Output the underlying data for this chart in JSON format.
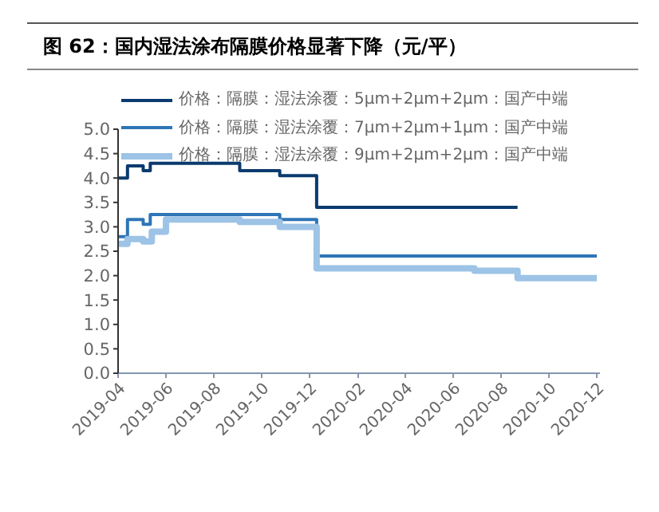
{
  "chart_data": {
    "type": "step",
    "title": "图 62：国内湿法涂布隔膜价格显著下降（元/平）",
    "series": [
      {
        "name": "价格：隔膜：湿法涂覆：5μm+2μm+2μm：国产中端",
        "color": "#0b3a6e",
        "x": [
          "2019-04-01",
          "2019-04-13",
          "2019-05-03",
          "2019-05-12",
          "2019-09-03",
          "2019-10-24",
          "2019-12-10",
          "2020-08-22"
        ],
        "values": [
          4.0,
          4.25,
          4.15,
          4.3,
          4.15,
          4.05,
          3.4,
          3.4
        ]
      },
      {
        "name": "价格：隔膜：湿法涂覆：7μm+2μm+1μm：国产中端",
        "color": "#2e75b6",
        "x": [
          "2019-04-01",
          "2019-04-13",
          "2019-05-03",
          "2019-05-12",
          "2019-10-24",
          "2019-12-10",
          "2020-12-01"
        ],
        "values": [
          2.8,
          3.15,
          3.05,
          3.25,
          3.15,
          2.4,
          2.4
        ]
      },
      {
        "name": "价格：隔膜：湿法涂覆：9μm+2μm+2μm：国产中端",
        "color": "#9dc3e6",
        "x": [
          "2019-04-01",
          "2019-04-13",
          "2019-05-03",
          "2019-05-14",
          "2019-06-01",
          "2019-09-03",
          "2019-10-24",
          "2019-12-10",
          "2020-06-28",
          "2020-08-22",
          "2020-12-01"
        ],
        "values": [
          2.65,
          2.75,
          2.7,
          2.9,
          3.15,
          3.1,
          3.0,
          2.15,
          2.1,
          1.95,
          1.95
        ]
      }
    ],
    "xlim": [
      "2019-04-01",
      "2020-12-05"
    ],
    "xticks": [
      "2019-04",
      "2019-06",
      "2019-08",
      "2019-10",
      "2019-12",
      "2020-02",
      "2020-04",
      "2020-06",
      "2020-08",
      "2020-10",
      "2020-12"
    ],
    "ylim": [
      0,
      5
    ],
    "yticks": [
      {
        "value": 0,
        "label": "0.0"
      },
      {
        "value": 0.5,
        "label": "0.5"
      },
      {
        "value": 1,
        "label": "1.0"
      },
      {
        "value": 1.5,
        "label": "1.5"
      },
      {
        "value": 2,
        "label": "2.0"
      },
      {
        "value": 2.5,
        "label": "2.5"
      },
      {
        "value": 3,
        "label": "3.0"
      },
      {
        "value": 3.5,
        "label": "3.5"
      },
      {
        "value": 4,
        "label": "4.0"
      },
      {
        "value": 4.5,
        "label": "4.5"
      },
      {
        "value": 5,
        "label": "5.0"
      }
    ],
    "legend": "top",
    "grid": false
  }
}
